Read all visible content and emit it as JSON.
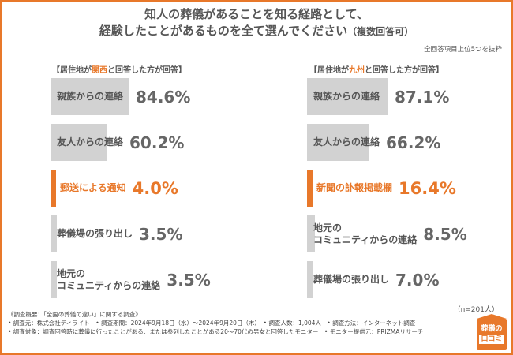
{
  "title": {
    "line1": "知人の葬儀があることを知る経路として、",
    "line2": "経験したことがあるものを全て選んでください",
    "line2_suffix": "（複数回答可）"
  },
  "note": "全回答項目上位5つを抜粋",
  "sample_size": "（n=201人）",
  "colors": {
    "accent": "#e8782a",
    "bar": "#d2d2d2",
    "text": "#555555"
  },
  "chart_data": [
    {
      "type": "bar",
      "orientation": "horizontal",
      "header": {
        "prefix": "【居住地が",
        "region": "関西",
        "suffix": "と回答した方が回答】"
      },
      "unit": "%",
      "categories": [
        "親族からの連絡",
        "友人からの連絡",
        "郵送による通知",
        "葬儀場の張り出し",
        "地元のコミュニティからの連絡"
      ],
      "label_lines": [
        [
          "親族からの連絡"
        ],
        [
          "友人からの連絡"
        ],
        [
          "郵送による通知"
        ],
        [
          "葬儀場の張り出し"
        ],
        [
          "地元の",
          "コミュニティからの連絡"
        ]
      ],
      "values": [
        84.6,
        60.2,
        4.0,
        3.5,
        3.5
      ],
      "value_labels": [
        "84.6%",
        "60.2%",
        "4.0%",
        "3.5%",
        "3.5%"
      ],
      "highlight_index": 2
    },
    {
      "type": "bar",
      "orientation": "horizontal",
      "header": {
        "prefix": "【居住地が",
        "region": "九州",
        "suffix": "と回答した方が回答】"
      },
      "unit": "%",
      "categories": [
        "親族からの連絡",
        "友人からの連絡",
        "新聞の訃報掲載欄",
        "地元のコミュニティからの連絡",
        "葬儀場の張り出し"
      ],
      "label_lines": [
        [
          "親族からの連絡"
        ],
        [
          "友人からの連絡"
        ],
        [
          "新聞の訃報掲載欄"
        ],
        [
          "地元の",
          "コミュニティからの連絡"
        ],
        [
          "葬儀場の張り出し"
        ]
      ],
      "values": [
        87.1,
        66.2,
        16.4,
        8.5,
        7.0
      ],
      "value_labels": [
        "87.1%",
        "66.2%",
        "16.4%",
        "8.5%",
        "7.0%"
      ],
      "highlight_index": 2
    }
  ],
  "footer": {
    "line1": "《調査概要：「全国の葬儀の違い」に関する調査》",
    "line2": "• 調査元：株式会社ディライト　• 調査期間：2024年9月18日（水）〜2024年9月20日（木）　• 調査人数：1,004人　• 調査方法：インターネット調査",
    "line3": "• 調査対象：調査回答時に葬儀に行ったことがある、または参列したことがある20〜70代の男女と回答したモニター　• モニター提供元：PRIZMAリサーチ"
  },
  "logo": {
    "top": "葬儀の",
    "bottom": "口コミ"
  }
}
